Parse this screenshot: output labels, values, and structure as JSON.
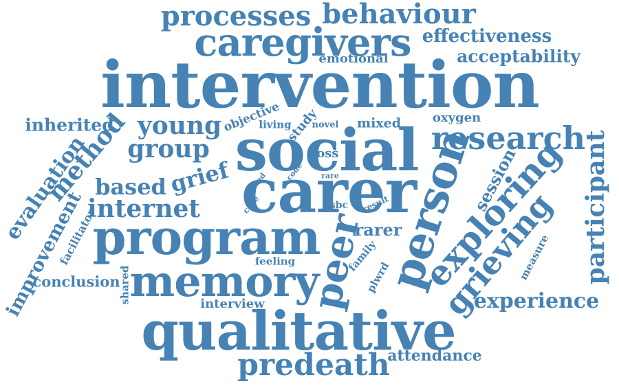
{
  "word_color": "#4682b4",
  "background": "#ffffff",
  "words": {
    "processes": "processes",
    "behaviour": "behaviour",
    "caregivers": "caregivers",
    "effectiveness": "effectiveness",
    "emotional": "emotional",
    "acceptability": "acceptability",
    "intervention": "intervention",
    "inherited": "inherited",
    "young": "young",
    "objective": "objective",
    "living": "living",
    "study": "study",
    "novel": "novel",
    "mixed": "mixed",
    "oxygen": "oxygen",
    "research": "research",
    "method": "method",
    "group": "group",
    "social": "social",
    "loss": "loss",
    "participant": "participant",
    "evaluation": "evaluation",
    "based": "based",
    "grief": "grief",
    "carer": "carer",
    "road": "road",
    "code": "code",
    "rare": "rare",
    "person": "person",
    "session": "session",
    "internet": "internet",
    "care": "care",
    "time": "time",
    "ssbc": "ssbc",
    "result": "result",
    "exploring": "exploring",
    "improvement": "improvement",
    "facilitator": "facilitator",
    "program": "program",
    "rarer": "rarer",
    "peer": "peer",
    "grieving": "grieving",
    "measure": "measure",
    "family": "family",
    "plwrd": "plwrd",
    "feeling": "feeling",
    "conclusion": "conclusion",
    "shared": "shared",
    "memory": "memory",
    "interview": "interview",
    "experience": "experience",
    "qualitative": "qualitative",
    "attendance": "attendance",
    "predeath": "predeath"
  }
}
